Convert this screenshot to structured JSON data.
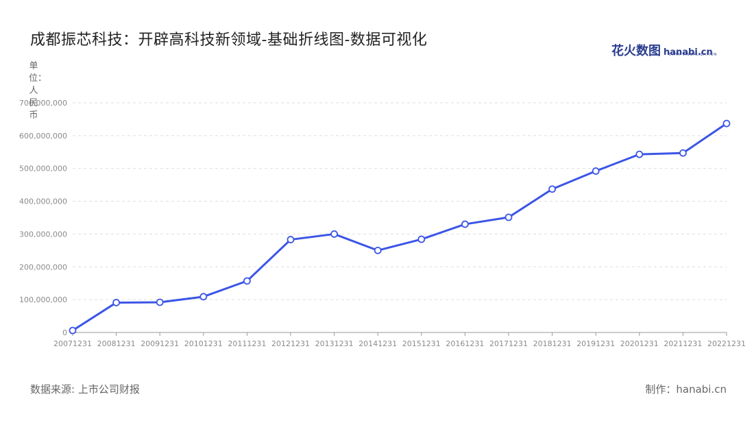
{
  "title": "成都振芯科技：开辟高科技新领域-基础折线图-数据可视化",
  "logo": {
    "cn": "花火数图",
    "en": "hanabi.cn",
    "sub": "DATA VISUALIZATION"
  },
  "footer": {
    "source": "数据来源: 上市公司财报",
    "credit": "制作：hanabi.cn"
  },
  "colors": {
    "line": "#3b55e6",
    "grid": "#dddddd",
    "axis": "#999999"
  },
  "chart_data": {
    "type": "line",
    "ylabel": "单位：人民币",
    "ylim": [
      0,
      700000000
    ],
    "yticks": [
      0,
      100000000,
      200000000,
      300000000,
      400000000,
      500000000,
      600000000,
      700000000
    ],
    "ytick_labels": [
      "0",
      "100,000,000",
      "200,000,000",
      "300,000,000",
      "400,000,000",
      "500,000,000",
      "600,000,000",
      "700,000,000"
    ],
    "grid": true,
    "categories": [
      "20071231",
      "20081231",
      "20091231",
      "20101231",
      "20111231",
      "20121231",
      "20131231",
      "20141231",
      "20151231",
      "20161231",
      "20171231",
      "20181231",
      "20191231",
      "20201231",
      "20211231",
      "20221231"
    ],
    "values": [
      6000000,
      91000000,
      92000000,
      109000000,
      157000000,
      283000000,
      300000000,
      250000000,
      284000000,
      330000000,
      351000000,
      437000000,
      492000000,
      543000000,
      547000000,
      637000000
    ]
  }
}
